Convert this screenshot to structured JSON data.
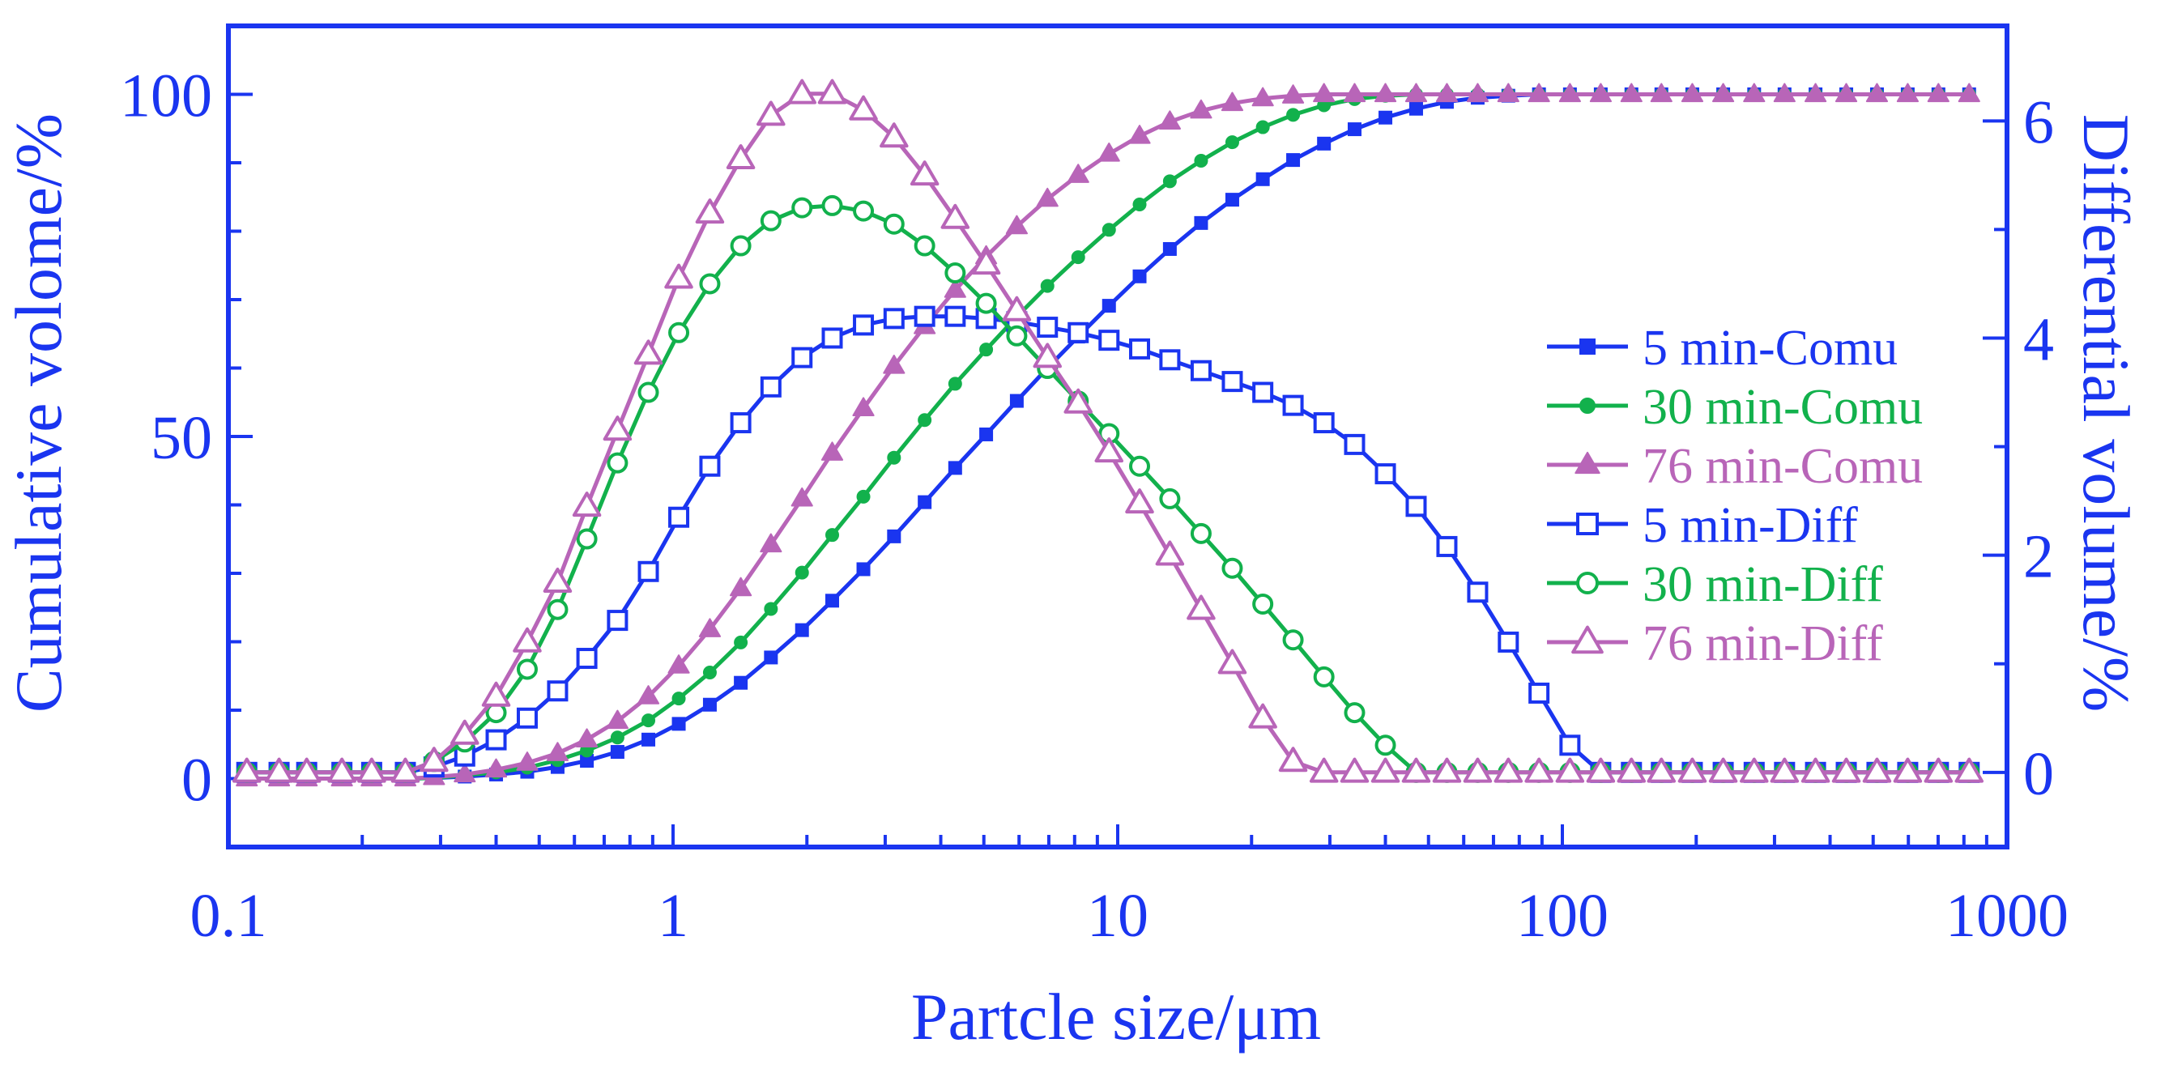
{
  "colors": {
    "axis": "#1a35f0",
    "c5": "#1a35f0",
    "c30": "#12b14c",
    "c76": "#b865b8"
  },
  "chart_data": {
    "type": "line",
    "xscale": "log",
    "xlim": [
      0.1,
      1000
    ],
    "ylim_left": [
      -10,
      110
    ],
    "ylim_right": [
      -0.6875,
      6.875
    ],
    "xlabel": "Partcle size/μm",
    "ylabel_left": "Cumulative volome/%",
    "ylabel_right": "Differential volume/%",
    "xticks": [
      {
        "value": 0.1,
        "label": "0.1"
      },
      {
        "value": 1,
        "label": "1"
      },
      {
        "value": 10,
        "label": "10"
      },
      {
        "value": 100,
        "label": "100"
      },
      {
        "value": 1000,
        "label": "1000"
      }
    ],
    "yticks_left": [
      {
        "value": 0,
        "label": "0"
      },
      {
        "value": 50,
        "label": "50"
      },
      {
        "value": 100,
        "label": "100"
      }
    ],
    "yticks_right": [
      {
        "value": 0,
        "label": "0"
      },
      {
        "value": 2,
        "label": "2"
      },
      {
        "value": 4,
        "label": "4"
      },
      {
        "value": 6,
        "label": "6"
      }
    ],
    "x": [
      0.11,
      0.13,
      0.15,
      0.18,
      0.21,
      0.25,
      0.29,
      0.34,
      0.4,
      0.47,
      0.55,
      0.64,
      0.75,
      0.88,
      1.03,
      1.21,
      1.42,
      1.66,
      1.95,
      2.28,
      2.68,
      3.14,
      3.68,
      4.31,
      5.06,
      5.93,
      6.95,
      8.15,
      9.56,
      11.2,
      13.1,
      15.4,
      18.1,
      21.2,
      24.8,
      29.1,
      34.1,
      40.0,
      46.9,
      55.0,
      64.5,
      75.6,
      88.6,
      104,
      122,
      143,
      167,
      196,
      230,
      270,
      316,
      371,
      435,
      510,
      598,
      701,
      822
    ],
    "series": [
      {
        "name": "5 min-Comu",
        "axis": "left",
        "kind": "comu",
        "color": "c5",
        "marker": "square-filled",
        "values": [
          0,
          0,
          0,
          0,
          0,
          0,
          0.1,
          0.3,
          0.6,
          1.0,
          1.7,
          2.6,
          3.9,
          5.7,
          8.0,
          10.8,
          14.0,
          17.7,
          21.7,
          26.0,
          30.6,
          35.4,
          40.4,
          45.4,
          50.3,
          55.2,
          60.0,
          64.6,
          69.1,
          73.4,
          77.4,
          81.2,
          84.6,
          87.6,
          90.4,
          92.8,
          94.9,
          96.6,
          97.9,
          98.9,
          99.5,
          99.8,
          100,
          100,
          100,
          100,
          100,
          100,
          100,
          100,
          100,
          100,
          100,
          100,
          100,
          100,
          100
        ]
      },
      {
        "name": "30 min-Comu",
        "axis": "left",
        "kind": "comu",
        "color": "c30",
        "marker": "circle-filled",
        "values": [
          0,
          0,
          0,
          0,
          0,
          0,
          0.1,
          0.5,
          0.9,
          1.6,
          2.7,
          4.1,
          6.0,
          8.5,
          11.7,
          15.5,
          19.9,
          24.8,
          30.1,
          35.6,
          41.2,
          46.9,
          52.4,
          57.7,
          62.7,
          67.5,
          72.0,
          76.2,
          80.2,
          83.9,
          87.3,
          90.3,
          93.0,
          95.2,
          97.0,
          98.4,
          99.3,
          99.8,
          100,
          100,
          100,
          100,
          100,
          100,
          100,
          100,
          100,
          100,
          100,
          100,
          100,
          100,
          100,
          100,
          100,
          100,
          100
        ]
      },
      {
        "name": "76 min-Comu",
        "axis": "left",
        "kind": "comu",
        "color": "c76",
        "marker": "triangle-filled",
        "values": [
          0,
          0,
          0,
          0,
          0,
          0,
          0.2,
          0.6,
          1.3,
          2.3,
          3.7,
          5.7,
          8.4,
          12.0,
          16.5,
          21.8,
          27.8,
          34.2,
          40.9,
          47.6,
          54.1,
          60.3,
          66.1,
          71.4,
          76.3,
          80.7,
          84.7,
          88.2,
          91.3,
          93.9,
          96.0,
          97.6,
          98.7,
          99.4,
          99.8,
          100,
          100,
          100,
          100,
          100,
          100,
          100,
          100,
          100,
          100,
          100,
          100,
          100,
          100,
          100,
          100,
          100,
          100,
          100,
          100,
          100,
          100
        ]
      },
      {
        "name": "5 min-Diff",
        "axis": "right",
        "kind": "diff",
        "color": "c5",
        "marker": "square-open",
        "values": [
          0,
          0,
          0,
          0,
          0,
          0,
          0.05,
          0.15,
          0.3,
          0.5,
          0.75,
          1.05,
          1.4,
          1.85,
          2.35,
          2.82,
          3.22,
          3.55,
          3.82,
          4.0,
          4.12,
          4.18,
          4.2,
          4.2,
          4.18,
          4.15,
          4.1,
          4.05,
          3.98,
          3.9,
          3.8,
          3.7,
          3.6,
          3.5,
          3.38,
          3.22,
          3.02,
          2.75,
          2.45,
          2.08,
          1.66,
          1.2,
          0.73,
          0.25,
          0,
          0,
          0,
          0,
          0,
          0,
          0,
          0,
          0,
          0,
          0,
          0,
          0
        ]
      },
      {
        "name": "30 min-Diff",
        "axis": "right",
        "kind": "diff",
        "color": "c30",
        "marker": "circle-open",
        "values": [
          0,
          0,
          0,
          0,
          0,
          0,
          0.1,
          0.28,
          0.55,
          0.95,
          1.5,
          2.15,
          2.85,
          3.5,
          4.05,
          4.5,
          4.85,
          5.08,
          5.2,
          5.22,
          5.17,
          5.05,
          4.85,
          4.6,
          4.32,
          4.02,
          3.72,
          3.42,
          3.12,
          2.82,
          2.52,
          2.2,
          1.88,
          1.55,
          1.22,
          0.88,
          0.55,
          0.25,
          0,
          0,
          0,
          0,
          0,
          0,
          0,
          0,
          0,
          0,
          0,
          0,
          0,
          0,
          0,
          0,
          0,
          0,
          0
        ]
      },
      {
        "name": "76 min-Diff",
        "axis": "right",
        "kind": "diff",
        "color": "c76",
        "marker": "triangle-open",
        "values": [
          0,
          0,
          0,
          0,
          0,
          0,
          0.1,
          0.35,
          0.7,
          1.2,
          1.75,
          2.45,
          3.15,
          3.85,
          4.55,
          5.15,
          5.65,
          6.05,
          6.25,
          6.25,
          6.1,
          5.85,
          5.5,
          5.1,
          4.68,
          4.25,
          3.82,
          3.4,
          2.95,
          2.48,
          2.0,
          1.5,
          1.0,
          0.5,
          0.1,
          0,
          0,
          0,
          0,
          0,
          0,
          0,
          0,
          0,
          0,
          0,
          0,
          0,
          0,
          0,
          0,
          0,
          0,
          0,
          0,
          0,
          0
        ]
      }
    ],
    "legend": {
      "position": "right-center"
    }
  }
}
